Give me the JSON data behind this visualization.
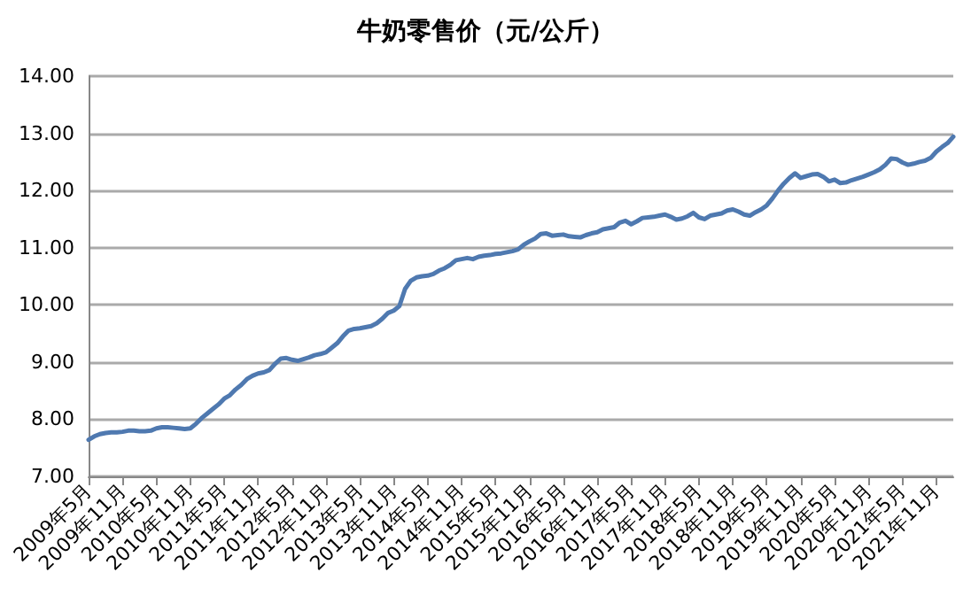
{
  "chart_data": {
    "type": "line",
    "title": "牛奶零售价（元/公斤）",
    "categories": [
      "2009年5月",
      null,
      null,
      null,
      null,
      null,
      "2009年11月",
      null,
      null,
      null,
      null,
      null,
      "2010年5月",
      null,
      null,
      null,
      null,
      null,
      "2010年11月",
      null,
      null,
      null,
      null,
      null,
      "2011年5月",
      null,
      null,
      null,
      null,
      null,
      "2011年11月",
      null,
      null,
      null,
      null,
      null,
      "2012年5月",
      null,
      null,
      null,
      null,
      null,
      "2012年11月",
      null,
      null,
      null,
      null,
      null,
      "2013年5月",
      null,
      null,
      null,
      null,
      null,
      "2013年11月",
      null,
      null,
      null,
      null,
      null,
      "2014年5月",
      null,
      null,
      null,
      null,
      null,
      "2014年11月",
      null,
      null,
      null,
      null,
      null,
      "2015年5月",
      null,
      null,
      null,
      null,
      null,
      "2015年11月",
      null,
      null,
      null,
      null,
      null,
      "2016年5月",
      null,
      null,
      null,
      null,
      null,
      "2016年11月",
      null,
      null,
      null,
      null,
      null,
      "2017年5月",
      null,
      null,
      null,
      null,
      null,
      "2017年11月",
      null,
      null,
      null,
      null,
      null,
      "2018年5月",
      null,
      null,
      null,
      null,
      null,
      "2018年11月",
      null,
      null,
      null,
      null,
      null,
      "2019年5月",
      null,
      null,
      null,
      null,
      null,
      "2019年11月",
      null,
      null,
      null,
      null,
      null,
      "2020年5月",
      null,
      null,
      null,
      null,
      null,
      "2020年11月",
      null,
      null,
      null,
      null,
      null,
      "2021年5月",
      null,
      null,
      null,
      null,
      null,
      "2021年11月",
      null,
      null,
      null
    ],
    "series": [
      {
        "color": "#4f79b0",
        "values": [
          7.64,
          7.7,
          7.74,
          7.76,
          7.77,
          7.77,
          7.78,
          7.8,
          7.8,
          7.79,
          7.79,
          7.8,
          7.84,
          7.86,
          7.86,
          7.85,
          7.84,
          7.83,
          7.84,
          7.92,
          8.02,
          8.1,
          8.18,
          8.26,
          8.36,
          8.42,
          8.52,
          8.6,
          8.7,
          8.76,
          8.8,
          8.82,
          8.86,
          8.97,
          9.06,
          9.07,
          9.04,
          9.02,
          9.05,
          9.08,
          9.12,
          9.14,
          9.17,
          9.25,
          9.33,
          9.45,
          9.55,
          9.58,
          9.59,
          9.61,
          9.63,
          9.68,
          9.76,
          9.86,
          9.9,
          9.98,
          10.28,
          10.42,
          10.48,
          10.5,
          10.51,
          10.54,
          10.6,
          10.64,
          10.7,
          10.78,
          10.8,
          10.82,
          10.8,
          10.84,
          10.86,
          10.87,
          10.89,
          10.9,
          10.92,
          10.94,
          10.97,
          11.05,
          11.11,
          11.16,
          11.24,
          11.25,
          11.21,
          11.22,
          11.23,
          11.2,
          11.19,
          11.18,
          11.22,
          11.25,
          11.27,
          11.32,
          11.34,
          11.36,
          11.44,
          11.47,
          11.41,
          11.46,
          11.52,
          11.53,
          11.54,
          11.56,
          11.58,
          11.54,
          11.49,
          11.51,
          11.55,
          11.61,
          11.53,
          11.5,
          11.56,
          11.58,
          11.6,
          11.65,
          11.67,
          11.63,
          11.58,
          11.56,
          11.62,
          11.67,
          11.74,
          11.86,
          12.0,
          12.12,
          12.22,
          12.3,
          12.22,
          12.25,
          12.28,
          12.29,
          12.24,
          12.16,
          12.19,
          12.13,
          12.14,
          12.18,
          12.21,
          12.24,
          12.28,
          12.32,
          12.37,
          12.45,
          12.56,
          12.55,
          12.49,
          12.45,
          12.47,
          12.5,
          12.52,
          12.57,
          12.68,
          12.76,
          12.83,
          12.94
        ]
      }
    ],
    "ylim": [
      7,
      14
    ],
    "yticks": [
      {
        "value": 7,
        "label": "7.00"
      },
      {
        "value": 8,
        "label": "8.00"
      },
      {
        "value": 9,
        "label": "9.00"
      },
      {
        "value": 10,
        "label": "10.00"
      },
      {
        "value": 11,
        "label": "11.00"
      },
      {
        "value": 12,
        "label": "12.00"
      },
      {
        "value": 13,
        "label": "13.00"
      },
      {
        "value": 14,
        "label": "14.00"
      }
    ],
    "grid": "y",
    "marker": "none",
    "line_style": "solid"
  }
}
